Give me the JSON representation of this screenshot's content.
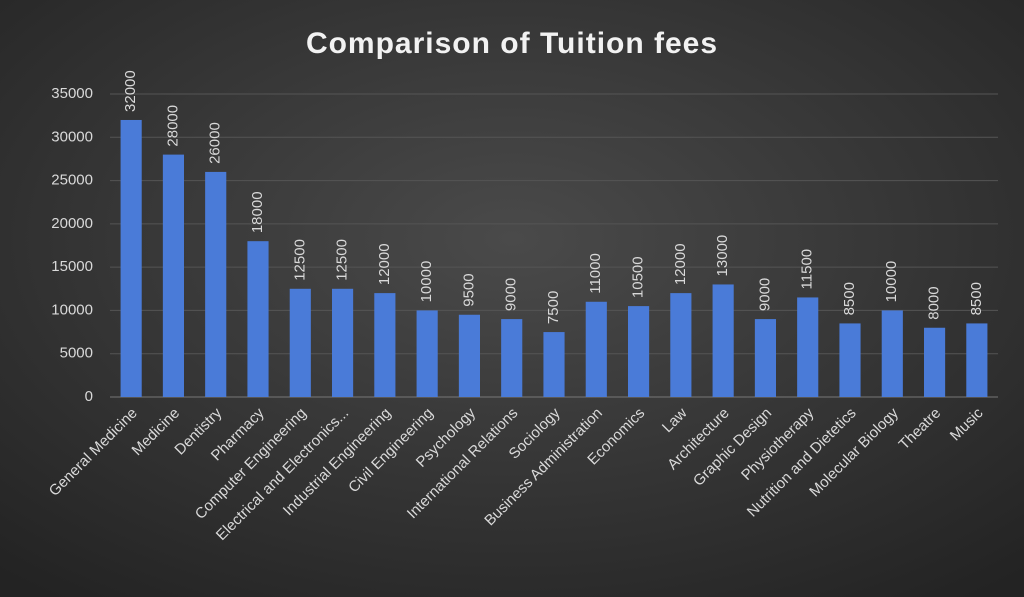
{
  "chart_data": {
    "type": "bar",
    "title": "Comparison of Tuition fees",
    "categories": [
      "General Medicine",
      "Medicine",
      "Dentistry",
      "Pharmacy",
      "Computer Engineering",
      "Electrical and Electronics...",
      "Industrial Engineering",
      "Civil Engineering",
      "Psychology",
      "International Relations",
      "Sociology",
      "Business Administration",
      "Economics",
      "Law",
      "Architecture",
      "Graphic Design",
      "Physiotherapy",
      "Nutrition and Dietetics",
      "Molecular Biology",
      "Theatre",
      "Music"
    ],
    "values": [
      32000,
      28000,
      26000,
      18000,
      12500,
      12500,
      12000,
      10000,
      9500,
      9000,
      7500,
      11000,
      10500,
      12000,
      13000,
      9000,
      11500,
      8500,
      10000,
      8000,
      8500
    ],
    "color": "#4a7bd8",
    "ylim": [
      0,
      35000
    ],
    "yticks": [
      0,
      5000,
      10000,
      15000,
      20000,
      25000,
      30000,
      35000
    ],
    "grid": true
  }
}
